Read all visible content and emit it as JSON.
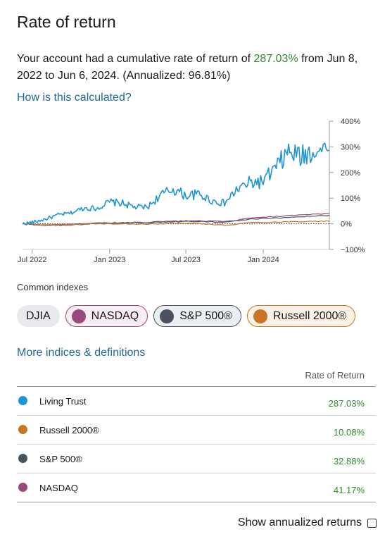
{
  "page": {
    "title": "Rate of return",
    "summary_prefix": "Your account had a cumulative rate of return of ",
    "summary_value": "287.03%",
    "summary_suffix": " from Jun 8, 2022 to Jun 6, 2024. (Annualized: 96.81%)",
    "how_link": "How is this calculated?",
    "common_label": "Common indexes",
    "more_link": "More indices & definitions",
    "rate_header": "Rate of Return",
    "annualized_label": "Show annualized returns",
    "annualized_checked": false
  },
  "chips": [
    {
      "label": "DJIA",
      "color": "",
      "selected": false
    },
    {
      "label": "NASDAQ",
      "color": "#9a4a78",
      "selected": true
    },
    {
      "label": "S&P 500®",
      "color": "#4a5260",
      "selected": true
    },
    {
      "label": "Russell 2000®",
      "color": "#c87422",
      "selected": true
    }
  ],
  "rows": [
    {
      "name": "Living Trust",
      "value": "287.03%",
      "color": "#1e95d4"
    },
    {
      "name": "Russell 2000®",
      "value": "10.08%",
      "color": "#c87422"
    },
    {
      "name": "S&P 500®",
      "value": "32.88%",
      "color": "#4a5260"
    },
    {
      "name": "NASDAQ",
      "value": "41.17%",
      "color": "#9a4a78"
    }
  ],
  "chart_data": {
    "type": "line",
    "x_tick_labels": [
      "Jul 2022",
      "Jan 2023",
      "Jul 2023",
      "Jan 2024"
    ],
    "x_ticks": [
      "2022-07-01",
      "2023-01-01",
      "2023-07-01",
      "2024-01-01"
    ],
    "x_range": [
      "2022-06-08",
      "2024-06-06"
    ],
    "y_tick_labels": [
      "400%",
      "300%",
      "200%",
      "100%",
      "0%",
      "−100%"
    ],
    "y_ticks": [
      400,
      300,
      200,
      100,
      0,
      -100
    ],
    "ylim": [
      -100,
      400
    ],
    "zero_line_dotted": true,
    "series": [
      {
        "name": "Living Trust",
        "color": "#1e95d4",
        "x": [
          "2022-06-08",
          "2022-07-01",
          "2022-08-01",
          "2022-09-01",
          "2022-10-01",
          "2022-11-01",
          "2022-12-01",
          "2023-01-01",
          "2023-02-01",
          "2023-03-01",
          "2023-04-01",
          "2023-05-01",
          "2023-06-01",
          "2023-07-01",
          "2023-08-01",
          "2023-09-01",
          "2023-10-01",
          "2023-11-01",
          "2023-12-01",
          "2024-01-01",
          "2024-02-01",
          "2024-03-01",
          "2024-04-01",
          "2024-05-01",
          "2024-06-06"
        ],
        "values": [
          0,
          5,
          18,
          35,
          42,
          62,
          60,
          85,
          80,
          65,
          65,
          110,
          135,
          110,
          115,
          90,
          80,
          135,
          160,
          165,
          220,
          280,
          260,
          290,
          287
        ]
      },
      {
        "name": "Russell 2000®",
        "color": "#c87422",
        "x": [
          "2022-06-08",
          "2022-08-01",
          "2022-10-01",
          "2022-12-01",
          "2023-02-01",
          "2023-04-01",
          "2023-06-01",
          "2023-08-01",
          "2023-10-01",
          "2023-12-01",
          "2024-02-01",
          "2024-04-01",
          "2024-06-06"
        ],
        "values": [
          0,
          -4,
          -2,
          1,
          0,
          -2,
          3,
          2,
          -6,
          5,
          7,
          9,
          10
        ]
      },
      {
        "name": "S&P 500®",
        "color": "#4a5260",
        "x": [
          "2022-06-08",
          "2022-08-01",
          "2022-10-01",
          "2022-12-01",
          "2023-02-01",
          "2023-04-01",
          "2023-06-01",
          "2023-08-01",
          "2023-10-01",
          "2023-12-01",
          "2024-02-01",
          "2024-04-01",
          "2024-06-06"
        ],
        "values": [
          0,
          -5,
          -3,
          2,
          4,
          5,
          8,
          10,
          6,
          18,
          22,
          28,
          33
        ]
      },
      {
        "name": "NASDAQ",
        "color": "#9a4a78",
        "x": [
          "2022-06-08",
          "2022-08-01",
          "2022-10-01",
          "2022-12-01",
          "2023-02-01",
          "2023-04-01",
          "2023-06-01",
          "2023-08-01",
          "2023-10-01",
          "2023-12-01",
          "2024-02-01",
          "2024-04-01",
          "2024-06-06"
        ],
        "values": [
          0,
          -6,
          -4,
          0,
          3,
          6,
          10,
          12,
          8,
          22,
          28,
          34,
          41
        ]
      }
    ]
  }
}
